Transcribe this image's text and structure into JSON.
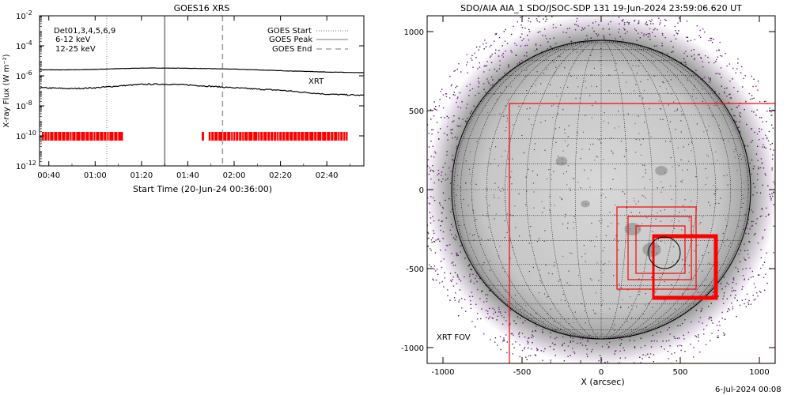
{
  "footer_text": "6-Jul-2024 00:08",
  "chart_data": [
    {
      "type": "line",
      "title": "GOES16 XRS",
      "xlabel": "Start Time (20-Jun-24 00:36:00)",
      "ylabel": "X-ray Flux (W m⁻²)",
      "y_scale": "log",
      "xlim": [
        "00:36",
        "02:56"
      ],
      "ylim": [
        1e-12,
        0.01
      ],
      "x_ticks": [
        "00:40",
        "01:00",
        "01:20",
        "01:40",
        "02:00",
        "02:20",
        "02:40"
      ],
      "y_ticks": [
        {
          "value": 0.01,
          "base": "10",
          "exp": "-2"
        },
        {
          "value": 0.0001,
          "base": "10",
          "exp": "-4"
        },
        {
          "value": 1e-06,
          "base": "10",
          "exp": "-6"
        },
        {
          "value": 1e-08,
          "base": "10",
          "exp": "-8"
        },
        {
          "value": 1e-10,
          "base": "10",
          "exp": "-10"
        },
        {
          "value": 1e-12,
          "base": "10",
          "exp": "-12"
        }
      ],
      "series": [
        {
          "name": "6-12 keV",
          "color": "#000000",
          "x": [
            "00:36",
            "00:50",
            "01:00",
            "01:10",
            "01:20",
            "01:30",
            "01:40",
            "01:50",
            "02:00",
            "02:10",
            "02:20",
            "02:30",
            "02:40",
            "02:56"
          ],
          "y": [
            2.5e-06,
            2.5e-06,
            2.7e-06,
            3e-06,
            3.3e-06,
            3.3e-06,
            3.2e-06,
            3e-06,
            2.8e-06,
            2.5e-06,
            2.2e-06,
            2e-06,
            1.8e-06,
            1.6e-06
          ]
        },
        {
          "name": "12-25 keV",
          "color": "#000000",
          "x": [
            "00:36",
            "00:50",
            "01:00",
            "01:10",
            "01:20",
            "01:30",
            "01:40",
            "01:50",
            "02:00",
            "02:10",
            "02:20",
            "02:30",
            "02:40",
            "02:56"
          ],
          "y": [
            1.6e-07,
            1.4e-07,
            1.6e-07,
            2.1e-07,
            2.7e-07,
            2.8e-07,
            2.5e-07,
            2e-07,
            1.6e-07,
            1.3e-07,
            1.1e-07,
            8e-08,
            6e-08,
            5e-08
          ]
        }
      ],
      "legend_left": {
        "detectors": "Det01,3,4,5,6,9",
        "items": [
          {
            "label": "6-12 keV",
            "color": "#ff00ff"
          },
          {
            "label": "12-25 keV",
            "color": "#00ff00"
          }
        ]
      },
      "legend_right": [
        {
          "label": "GOES Start",
          "style": "dotted"
        },
        {
          "label": "GOES Peak",
          "style": "solid"
        },
        {
          "label": "GOES End",
          "style": "dashed"
        }
      ],
      "event_lines": {
        "goes_start": "01:05",
        "goes_peak": "01:30",
        "goes_end": "01:55"
      },
      "xrt_label": "XRT",
      "xrt_color": "#ff0000",
      "xrt_coverage": [
        [
          "00:37",
          "01:12"
        ],
        [
          "01:46",
          "01:47"
        ],
        [
          "01:49",
          "02:49"
        ]
      ]
    },
    {
      "type": "image",
      "title": "SDO/AIA AIA_1 SDO/JSOC-SDP 131 19-Jun-2024 23:59:06.620 UT",
      "xlabel": "X (arcsec)",
      "ylabel": "",
      "xlim": [
        -1100,
        1100
      ],
      "ylim": [
        -1100,
        1100
      ],
      "x_ticks": [
        -1000,
        -500,
        0,
        500,
        1000
      ],
      "y_ticks": [
        -1000,
        -500,
        0,
        500,
        1000
      ],
      "solar_radius_arcsec": 945,
      "grid_spacing_deg": 10,
      "fov_label": "XRT FOV",
      "fov_color": "#ff0000",
      "fov_boxes": [
        {
          "x": [
            -580,
            1100
          ],
          "y": [
            -1100,
            545
          ]
        },
        {
          "x": [
            100,
            600
          ],
          "y": [
            -630,
            -110
          ]
        },
        {
          "x": [
            170,
            570
          ],
          "y": [
            -570,
            -170
          ]
        },
        {
          "x": [
            220,
            530
          ],
          "y": [
            -530,
            -230
          ]
        },
        {
          "x": [
            330,
            730
          ],
          "y": [
            -690,
            -290
          ]
        },
        {
          "x": [
            330,
            720
          ],
          "y": [
            -680,
            -300
          ]
        }
      ],
      "target_circle": {
        "x": 400,
        "y": -400,
        "r": 100
      }
    }
  ]
}
